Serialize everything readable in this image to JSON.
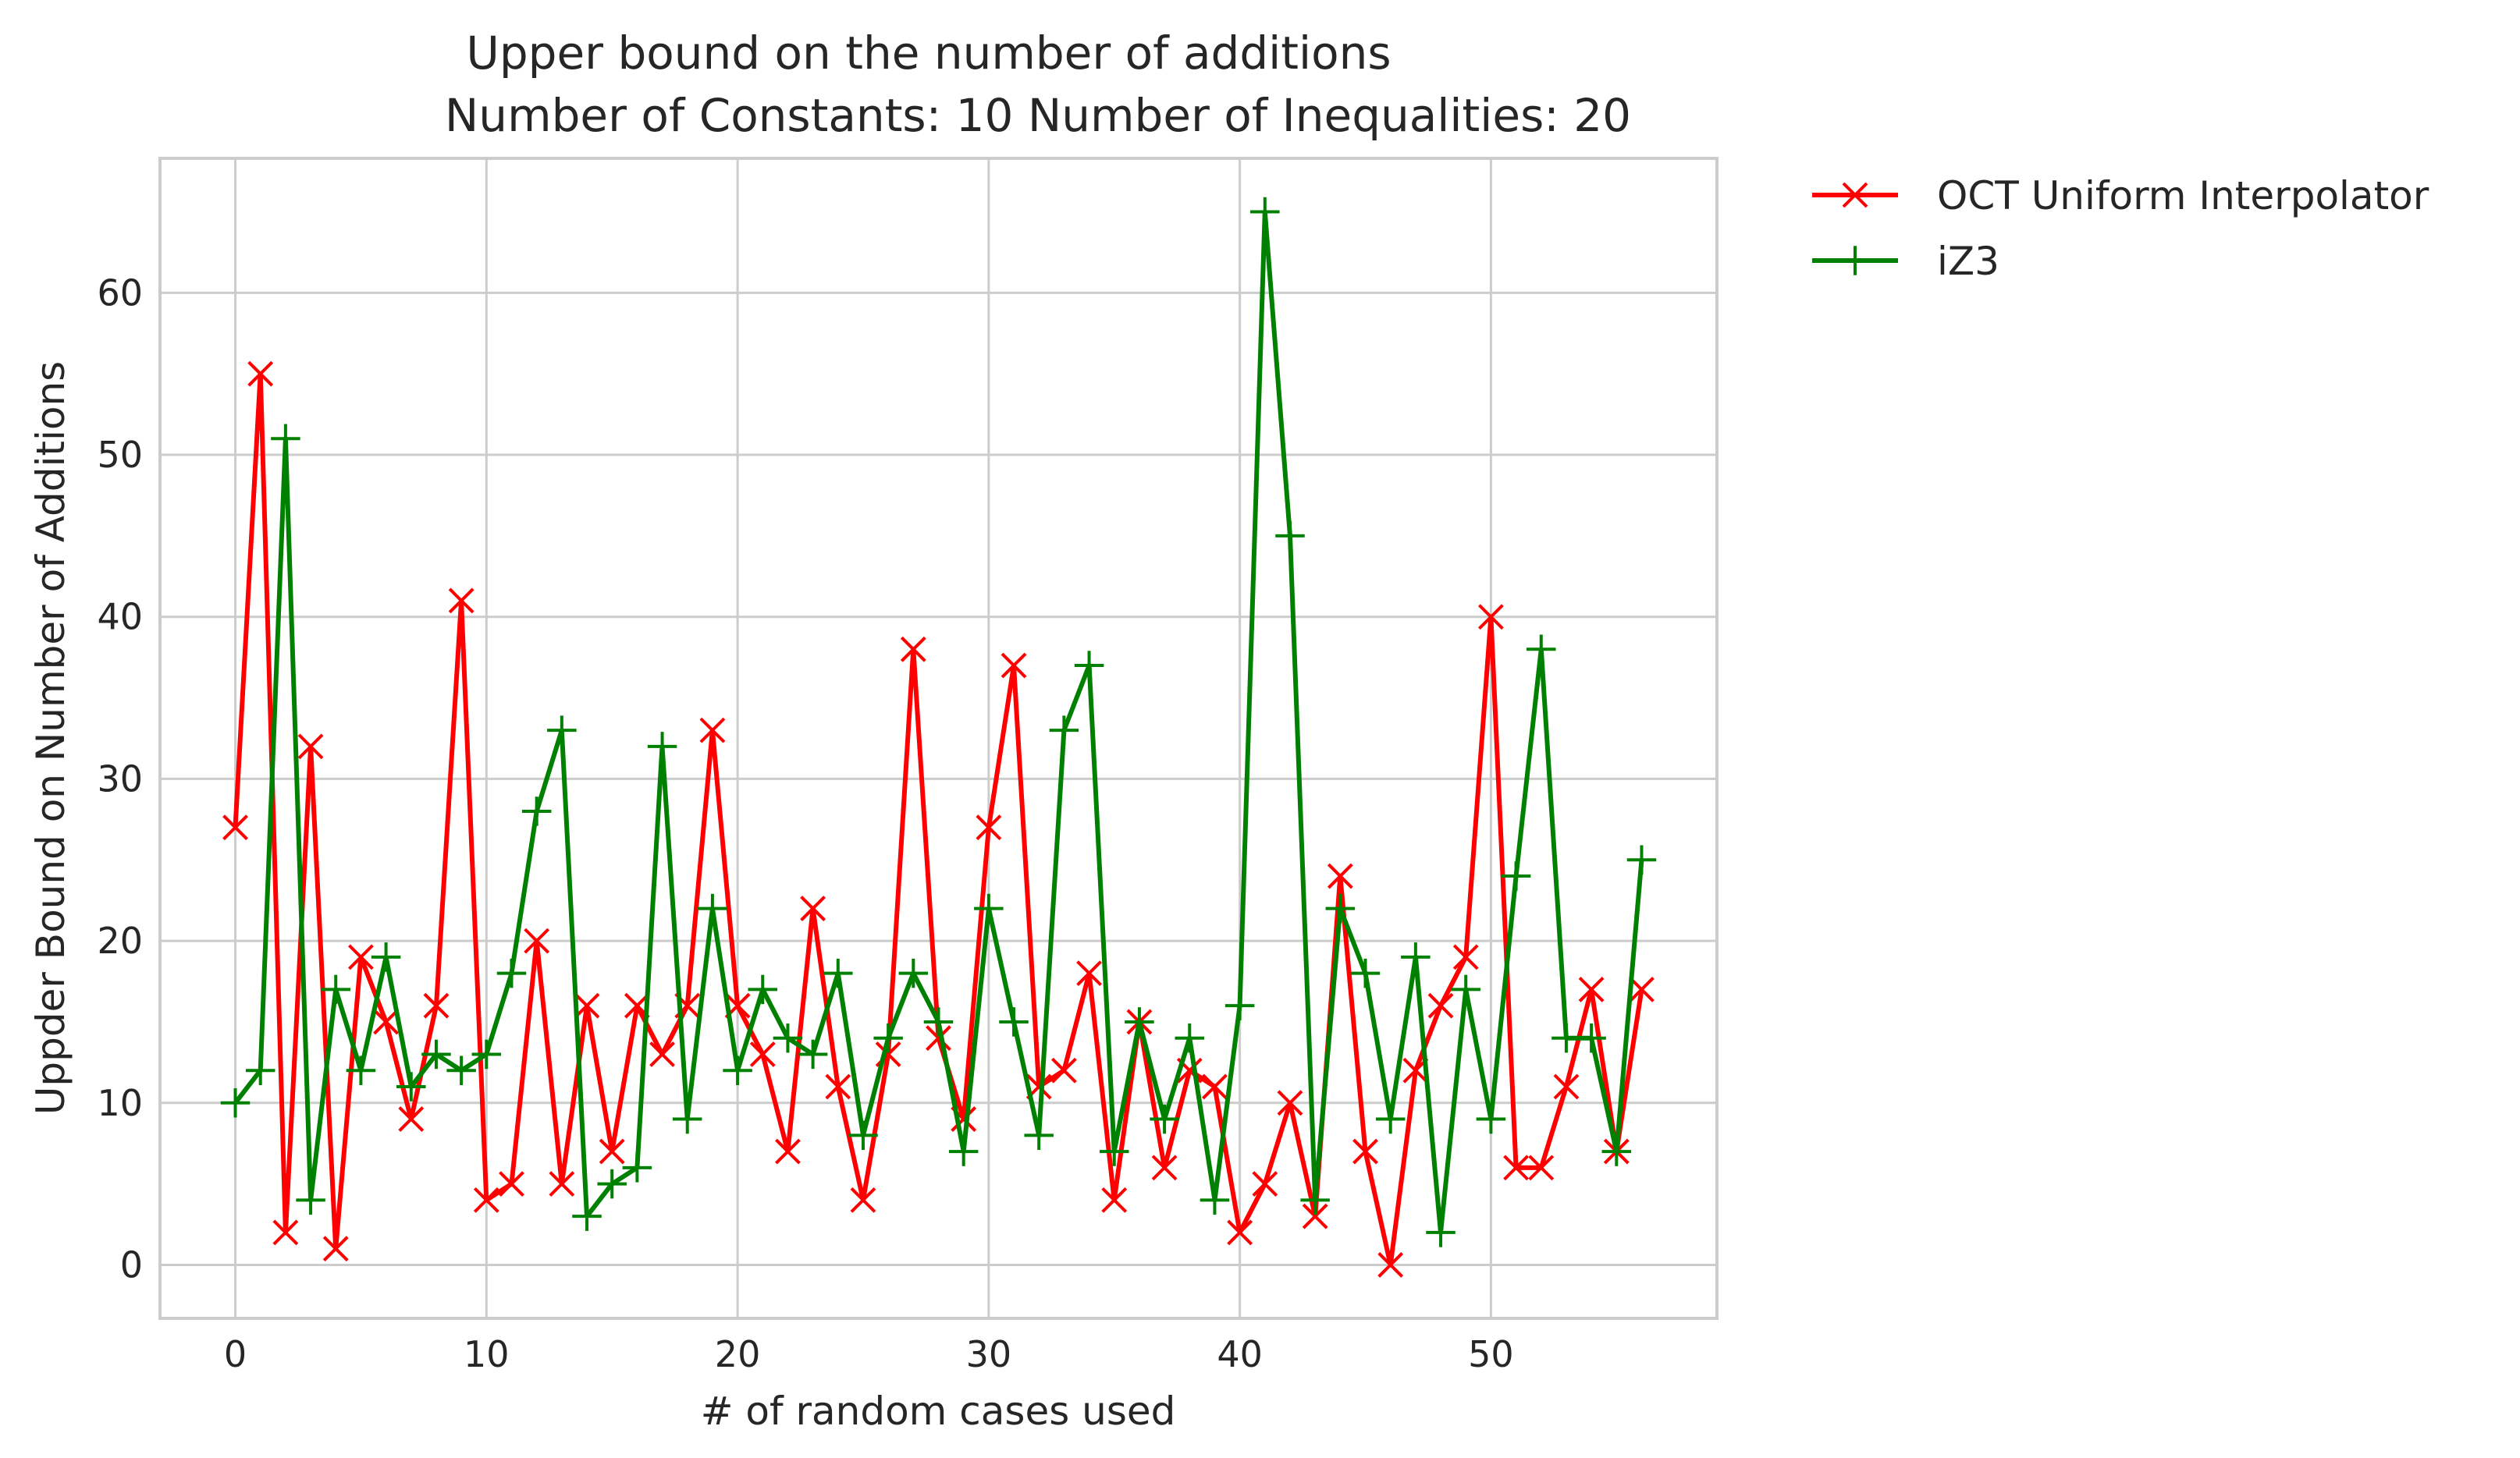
{
  "chart_data": {
    "type": "line",
    "title": "Upper bound on the number of additions",
    "subtitle": "Number of Constants: 10 Number of Inequalities: 20",
    "xlabel": "# of random cases used",
    "ylabel": "Uppder Bound on Number of Additions",
    "xlim": [
      -3,
      59
    ],
    "ylim": [
      -3.3,
      68.3
    ],
    "xticks": [
      0,
      10,
      20,
      30,
      40,
      50
    ],
    "yticks": [
      0,
      10,
      20,
      30,
      40,
      50,
      60
    ],
    "grid": true,
    "legend_position": "outside-top-right",
    "x": [
      0,
      1,
      2,
      3,
      4,
      5,
      6,
      7,
      8,
      9,
      10,
      11,
      12,
      13,
      14,
      15,
      16,
      17,
      18,
      19,
      20,
      21,
      22,
      23,
      24,
      25,
      26,
      27,
      28,
      29,
      30,
      31,
      32,
      33,
      34,
      35,
      36,
      37,
      38,
      39,
      40,
      41,
      42,
      43,
      44,
      45,
      46,
      47,
      48,
      49,
      50,
      51,
      52,
      53,
      54,
      55,
      56
    ],
    "series": [
      {
        "name": "OCT Uniform Interpolator",
        "color": "#ff0000",
        "marker": "x",
        "values": [
          27,
          55,
          2,
          32,
          1,
          19,
          15,
          9,
          16,
          41,
          4,
          5,
          20,
          5,
          16,
          7,
          16,
          13,
          16,
          33,
          16,
          13,
          7,
          22,
          11,
          4,
          13,
          38,
          14,
          9,
          27,
          37,
          11,
          12,
          18,
          4,
          15,
          6,
          12,
          11,
          2,
          5,
          10,
          3,
          24,
          7,
          0,
          12,
          16,
          19,
          40,
          6,
          6,
          11,
          17,
          7,
          17
        ]
      },
      {
        "name": "iZ3",
        "color": "#008000",
        "marker": "+",
        "values": [
          10,
          12,
          51,
          4,
          17,
          12,
          19,
          11,
          13,
          12,
          13,
          18,
          28,
          33,
          3,
          5,
          6,
          32,
          9,
          22,
          12,
          17,
          14,
          13,
          18,
          8,
          14,
          18,
          15,
          7,
          22,
          15,
          8,
          33,
          37,
          7,
          15,
          9,
          14,
          4,
          16,
          65,
          45,
          4,
          22,
          18,
          9,
          19,
          2,
          17,
          9,
          24,
          38,
          14,
          14,
          7,
          25
        ]
      }
    ]
  }
}
